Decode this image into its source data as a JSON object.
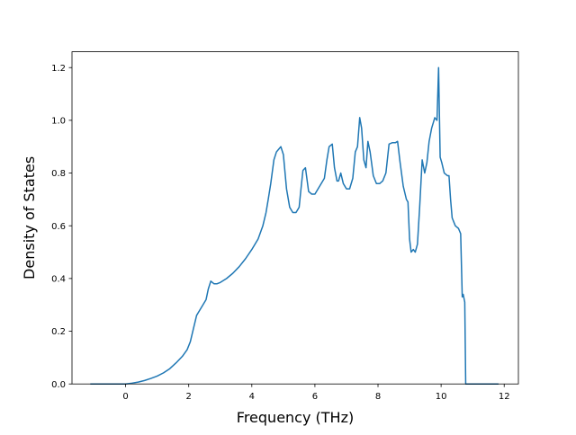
{
  "chart_data": {
    "type": "line",
    "xlabel": "Frequency (THz)",
    "ylabel": "Density of States",
    "xlim": [
      -1.7,
      12.45
    ],
    "ylim": [
      0.0,
      1.26
    ],
    "xticks": [
      0,
      2,
      4,
      6,
      8,
      10,
      12
    ],
    "yticks": [
      0.0,
      0.2,
      0.4,
      0.6,
      0.8,
      1.0,
      1.2
    ],
    "xtick_labels": [
      "0",
      "2",
      "4",
      "6",
      "8",
      "10",
      "12"
    ],
    "ytick_labels": [
      "0.0",
      "0.2",
      "0.4",
      "0.6",
      "0.8",
      "1.0",
      "1.2"
    ],
    "grid": false,
    "legend": "none",
    "line_color": "#1f77b4",
    "series": [
      {
        "x": [
          -1.12,
          -0.5,
          0.0,
          0.2,
          0.4,
          0.6,
          0.8,
          1.0,
          1.2,
          1.4,
          1.6,
          1.8,
          1.95,
          2.05,
          2.15,
          2.25,
          2.3,
          2.45,
          2.55,
          2.62,
          2.7,
          2.8,
          2.9,
          3.0,
          3.2,
          3.4,
          3.6,
          3.8,
          4.0,
          4.2,
          4.35,
          4.45,
          4.52,
          4.6,
          4.7,
          4.78,
          4.85,
          4.92,
          5.0,
          5.1,
          5.2,
          5.3,
          5.4,
          5.5,
          5.55,
          5.62,
          5.7,
          5.8,
          5.9,
          6.0,
          6.1,
          6.2,
          6.3,
          6.38,
          6.45,
          6.55,
          6.62,
          6.7,
          6.75,
          6.82,
          6.9,
          7.0,
          7.1,
          7.2,
          7.28,
          7.35,
          7.42,
          7.48,
          7.55,
          7.62,
          7.68,
          7.75,
          7.85,
          7.95,
          8.05,
          8.15,
          8.25,
          8.35,
          8.45,
          8.55,
          8.62,
          8.7,
          8.8,
          8.9,
          8.95,
          9.0,
          9.05,
          9.12,
          9.18,
          9.25,
          9.32,
          9.4,
          9.48,
          9.55,
          9.62,
          9.7,
          9.8,
          9.87,
          9.92,
          9.97,
          10.02,
          10.1,
          10.2,
          10.25,
          10.3,
          10.35,
          10.45,
          10.55,
          10.62,
          10.67,
          10.7,
          10.75,
          10.78,
          10.82,
          11.82
        ],
        "values": [
          0.0,
          0.0,
          0.0,
          0.003,
          0.007,
          0.013,
          0.021,
          0.03,
          0.042,
          0.058,
          0.08,
          0.105,
          0.13,
          0.16,
          0.21,
          0.26,
          0.27,
          0.3,
          0.32,
          0.36,
          0.39,
          0.38,
          0.38,
          0.385,
          0.4,
          0.42,
          0.445,
          0.475,
          0.51,
          0.55,
          0.6,
          0.65,
          0.7,
          0.76,
          0.85,
          0.88,
          0.89,
          0.9,
          0.87,
          0.74,
          0.67,
          0.65,
          0.65,
          0.67,
          0.73,
          0.81,
          0.82,
          0.73,
          0.72,
          0.72,
          0.74,
          0.76,
          0.78,
          0.85,
          0.9,
          0.91,
          0.82,
          0.77,
          0.77,
          0.8,
          0.76,
          0.74,
          0.74,
          0.78,
          0.88,
          0.9,
          1.01,
          0.97,
          0.85,
          0.82,
          0.92,
          0.88,
          0.79,
          0.76,
          0.76,
          0.77,
          0.8,
          0.91,
          0.915,
          0.915,
          0.92,
          0.84,
          0.75,
          0.7,
          0.69,
          0.55,
          0.5,
          0.51,
          0.5,
          0.53,
          0.67,
          0.85,
          0.8,
          0.84,
          0.92,
          0.97,
          1.01,
          1.0,
          1.2,
          0.86,
          0.84,
          0.8,
          0.79,
          0.79,
          0.7,
          0.63,
          0.6,
          0.59,
          0.57,
          0.33,
          0.34,
          0.31,
          0.0,
          0.0,
          0.0
        ]
      }
    ]
  }
}
